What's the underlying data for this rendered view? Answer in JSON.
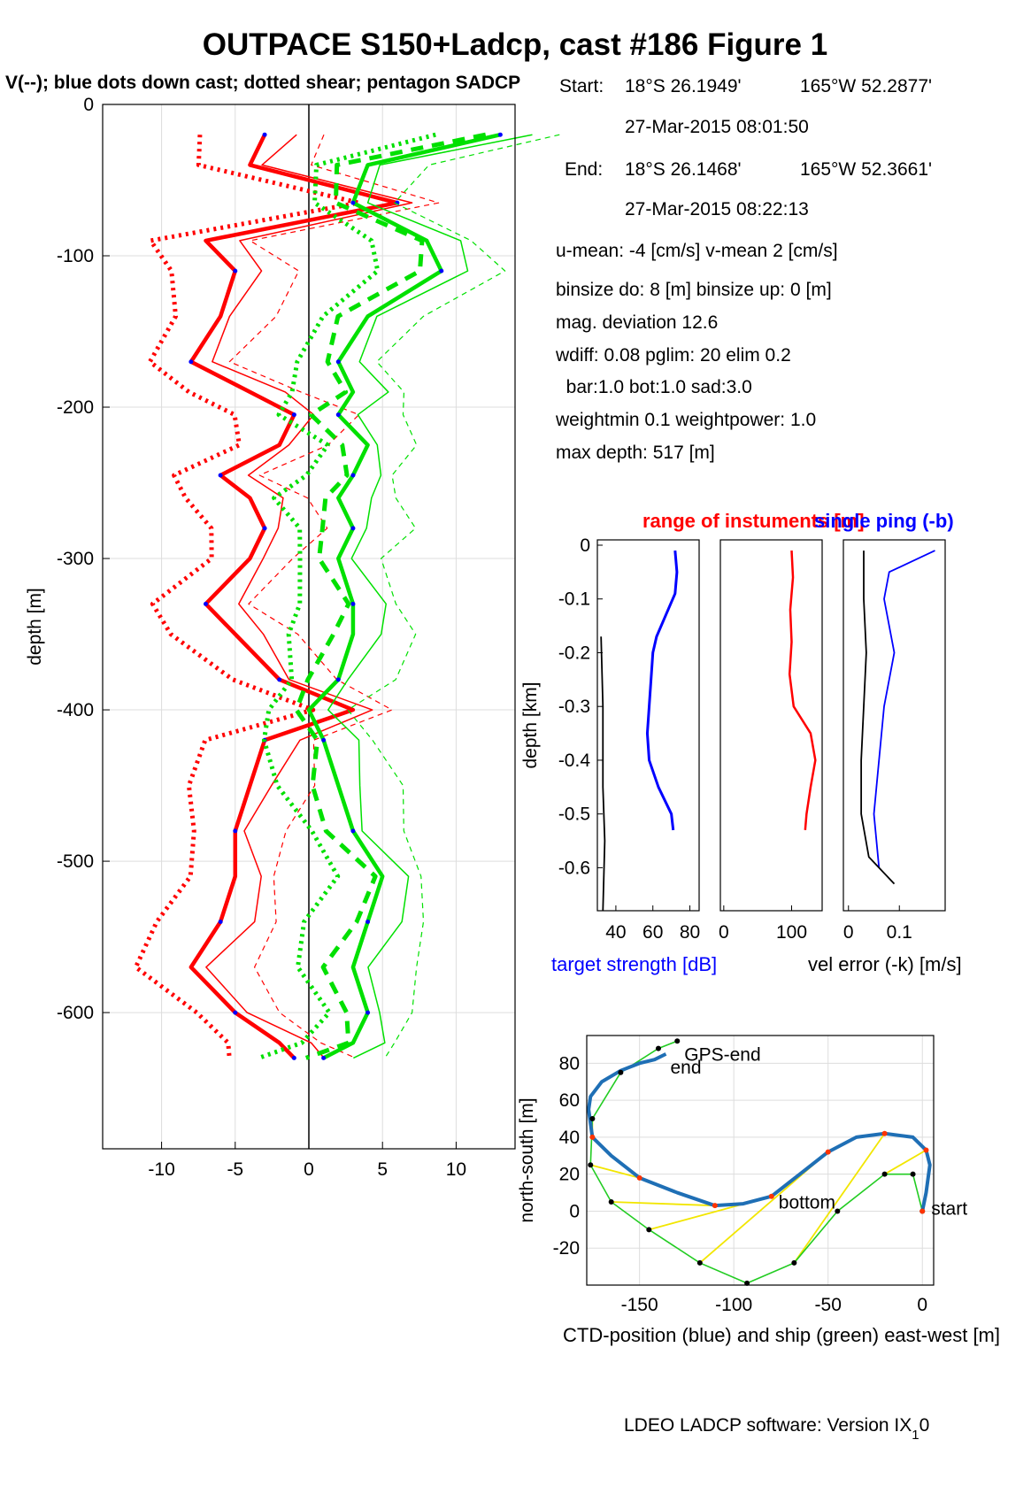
{
  "title": "OUTPACE S150+Ladcp, cast #186  Figure 1",
  "subtitle": "V(--); blue dots down cast; dotted shear; pentagon SADCP",
  "info": {
    "start_label": "Start:",
    "start_lat": "18°S 26.1949'",
    "start_lon": "165°W 52.2877'",
    "start_time": "27-Mar-2015 08:01:50",
    "end_label": "End:",
    "end_lat": "18°S 26.1468'",
    "end_lon": "165°W 52.3661'",
    "end_time": "27-Mar-2015 08:22:13",
    "means": "u-mean:  -4 [cm/s]    v-mean   2 [cm/s]",
    "binsize": "binsize do: 8 [m]  binsize up:  0 [m]",
    "magdev": "mag. deviation 12.6",
    "wdiff": "wdiff: 0.08  pglim: 20  elim 0.2",
    "bar": "  bar:1.0 bot:1.0 sad:3.0",
    "weight": "weightmin 0.1  weightpower: 1.0",
    "maxdepth": "max depth: 517 [m]"
  },
  "footer": "LDEO LADCP software: Version IX",
  "footer_sub": "1",
  "footer_tail": "0",
  "colors": {
    "u": "#ff0000",
    "v": "#00e000",
    "dots": "#0000ff",
    "ctd": "#1f6fb5",
    "ship": "#22cc22",
    "link": "#f2e600"
  },
  "chart_data": [
    {
      "type": "line",
      "name": "velocity-profile",
      "ylabel": "depth [m]",
      "xlim": [
        -14,
        14
      ],
      "ylim": [
        -690,
        0
      ],
      "xticks": [
        -10,
        -5,
        0,
        5,
        10
      ],
      "yticks": [
        0,
        -100,
        -200,
        -300,
        -400,
        -500,
        -600
      ],
      "grid": true,
      "series": [
        {
          "name": "u",
          "color": "#ff0000",
          "depth": [
            -20,
            -40,
            -65,
            -90,
            -110,
            -140,
            -170,
            -190,
            -205,
            -225,
            -245,
            -260,
            -280,
            -300,
            -330,
            -350,
            -380,
            -400,
            -420,
            -450,
            -480,
            -510,
            -540,
            -570,
            -600,
            -620,
            -630
          ],
          "values": [
            -3,
            -4,
            6,
            -7,
            -5,
            -6,
            -8,
            -4,
            -1,
            -2,
            -6,
            -4,
            -3,
            -4,
            -7,
            -5,
            -2,
            3,
            -3,
            -4,
            -5,
            -5,
            -6,
            -8,
            -5,
            -2,
            -1
          ]
        },
        {
          "name": "v",
          "color": "#00e000",
          "depth": [
            -20,
            -40,
            -65,
            -90,
            -110,
            -140,
            -170,
            -190,
            -205,
            -225,
            -245,
            -260,
            -280,
            -300,
            -330,
            -350,
            -380,
            -400,
            -420,
            -450,
            -480,
            -510,
            -540,
            -570,
            -600,
            -620,
            -630
          ],
          "values": [
            13,
            4,
            3,
            8,
            9,
            4,
            2,
            3,
            2,
            4,
            3,
            2,
            3,
            2,
            3,
            3,
            2,
            0,
            1,
            2,
            3,
            5,
            4,
            3,
            4,
            3,
            1
          ]
        }
      ]
    },
    {
      "type": "line",
      "name": "target-strength",
      "title": "range of instuments [m]",
      "xlabel": "target strength [dB]",
      "ylabel": "depth [km]",
      "ylim": [
        -0.68,
        0
      ],
      "xlim": [
        30,
        85
      ],
      "xticks": [
        40,
        60,
        80
      ],
      "yticks": [
        0,
        -0.1,
        -0.2,
        -0.3,
        -0.4,
        -0.5,
        -0.6
      ],
      "series": [
        {
          "color": "#0000ff",
          "depth": [
            -0.01,
            -0.05,
            -0.09,
            -0.13,
            -0.17,
            -0.2,
            -0.25,
            -0.3,
            -0.35,
            -0.4,
            -0.45,
            -0.5,
            -0.53
          ],
          "values": [
            72,
            73,
            72,
            67,
            62,
            60,
            59,
            58,
            57,
            58,
            63,
            70,
            71
          ]
        },
        {
          "color": "#000000",
          "depth": [
            -0.17,
            -0.3,
            -0.45,
            -0.55,
            -0.68
          ],
          "values": [
            32,
            33,
            33,
            34,
            33
          ]
        }
      ]
    },
    {
      "type": "line",
      "name": "instrument-range",
      "xticks": [
        0,
        100
      ],
      "xlim": [
        -5,
        145
      ],
      "ylim": [
        -0.68,
        0
      ],
      "series": [
        {
          "color": "#ff0000",
          "depth": [
            -0.01,
            -0.06,
            -0.12,
            -0.18,
            -0.24,
            -0.3,
            -0.35,
            -0.4,
            -0.45,
            -0.5,
            -0.53
          ],
          "values": [
            100,
            102,
            98,
            100,
            97,
            103,
            128,
            135,
            128,
            122,
            120
          ]
        }
      ]
    },
    {
      "type": "line",
      "name": "single-ping",
      "title": "single ping (-b)",
      "xlabel": "vel error (-k) [m/s]",
      "xticks": [
        0,
        0.1
      ],
      "xlim": [
        -0.01,
        0.19
      ],
      "ylim": [
        -0.68,
        0
      ],
      "series": [
        {
          "color": "#0000ff",
          "depth": [
            -0.01,
            -0.05,
            -0.1,
            -0.2,
            -0.3,
            -0.4,
            -0.5,
            -0.6
          ],
          "values": [
            0.17,
            0.08,
            0.07,
            0.09,
            0.07,
            0.06,
            0.05,
            0.06
          ]
        },
        {
          "color": "#000000",
          "depth": [
            -0.01,
            -0.1,
            -0.2,
            -0.3,
            -0.4,
            -0.5,
            -0.58,
            -0.63
          ],
          "values": [
            0.03,
            0.03,
            0.035,
            0.03,
            0.025,
            0.025,
            0.04,
            0.09
          ]
        }
      ]
    },
    {
      "type": "line",
      "name": "track",
      "xlabel": "CTD-position (blue) and ship (green) east-west [m]",
      "ylabel": "north-south [m]",
      "xlim": [
        -178,
        6
      ],
      "ylim": [
        -40,
        95
      ],
      "xticks": [
        -150,
        -100,
        -50,
        0
      ],
      "yticks": [
        -20,
        0,
        20,
        40,
        60,
        80
      ],
      "labels": [
        "GPS-end",
        "end",
        "bottom",
        "start"
      ],
      "series": [
        {
          "name": "CTD",
          "color": "#1f6fb5",
          "x": [
            0,
            2,
            4,
            2,
            -5,
            -20,
            -35,
            -50,
            -65,
            -80,
            -95,
            -110,
            -130,
            -150,
            -165,
            -175,
            -177,
            -176,
            -170,
            -160,
            -150,
            -142,
            -136
          ],
          "y": [
            0,
            10,
            25,
            33,
            40,
            42,
            40,
            32,
            20,
            8,
            4,
            3,
            10,
            18,
            30,
            40,
            55,
            62,
            70,
            76,
            80,
            82,
            85
          ]
        },
        {
          "name": "ship",
          "color": "#22cc22",
          "x": [
            0,
            -5,
            -20,
            -45,
            -68,
            -93,
            -118,
            -145,
            -165,
            -176,
            -175,
            -160,
            -140,
            -130
          ],
          "y": [
            0,
            20,
            20,
            0,
            -28,
            -39,
            -28,
            -10,
            5,
            25,
            50,
            75,
            88,
            92
          ]
        }
      ]
    }
  ]
}
